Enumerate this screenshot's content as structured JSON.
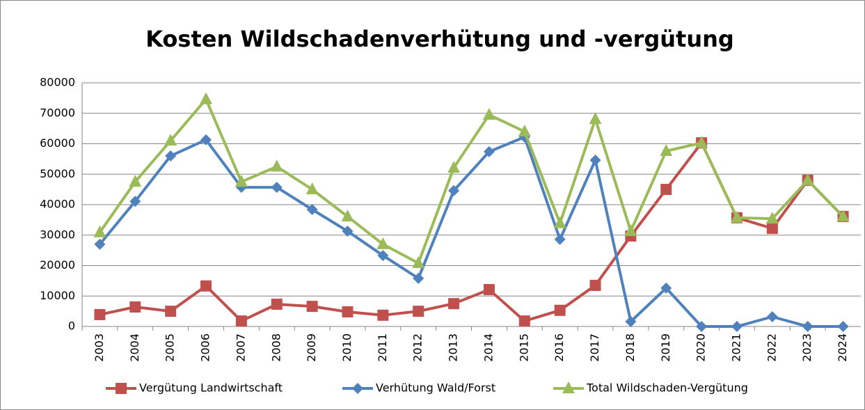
{
  "chart_data": {
    "type": "line",
    "title": "Kosten Wildschadenverhütung und -vergütung",
    "categories": [
      "2003",
      "2004",
      "2005",
      "2006",
      "2007",
      "2008",
      "2009",
      "2010",
      "2011",
      "2012",
      "2013",
      "2014",
      "2015",
      "2016",
      "2017",
      "2018",
      "2019",
      "2020",
      "2021",
      "2022",
      "2023",
      "2024"
    ],
    "series": [
      {
        "name": "Vergütung Landwirtschaft",
        "color": "#c0504d",
        "marker": "square",
        "values": [
          3900,
          6400,
          5000,
          13300,
          1800,
          7300,
          6600,
          4800,
          3700,
          5000,
          7500,
          12100,
          1800,
          5300,
          13500,
          29700,
          45000,
          60300,
          35700,
          32200,
          48000,
          36100
        ]
      },
      {
        "name": "Verhütung Wald/Forst",
        "color": "#4f81bd",
        "marker": "diamond",
        "values": [
          27000,
          41100,
          56000,
          61300,
          45700,
          45700,
          38400,
          31300,
          23300,
          15800,
          44600,
          57400,
          62200,
          28600,
          54600,
          1600,
          12600,
          0,
          0,
          3200,
          0,
          0
        ]
      },
      {
        "name": "Total Wildschaden-Vergütung",
        "color": "#9bbb59",
        "marker": "triangle",
        "values": [
          30900,
          47500,
          61000,
          74600,
          47500,
          52500,
          45000,
          36100,
          27000,
          20800,
          52100,
          69500,
          64000,
          33900,
          68100,
          31300,
          57600,
          60300,
          35700,
          35400,
          48000,
          36100
        ]
      }
    ],
    "ylim": [
      0,
      80000
    ],
    "yticks": [
      0,
      10000,
      20000,
      30000,
      40000,
      50000,
      60000,
      70000,
      80000
    ],
    "grid": true,
    "legend": "bottom"
  }
}
